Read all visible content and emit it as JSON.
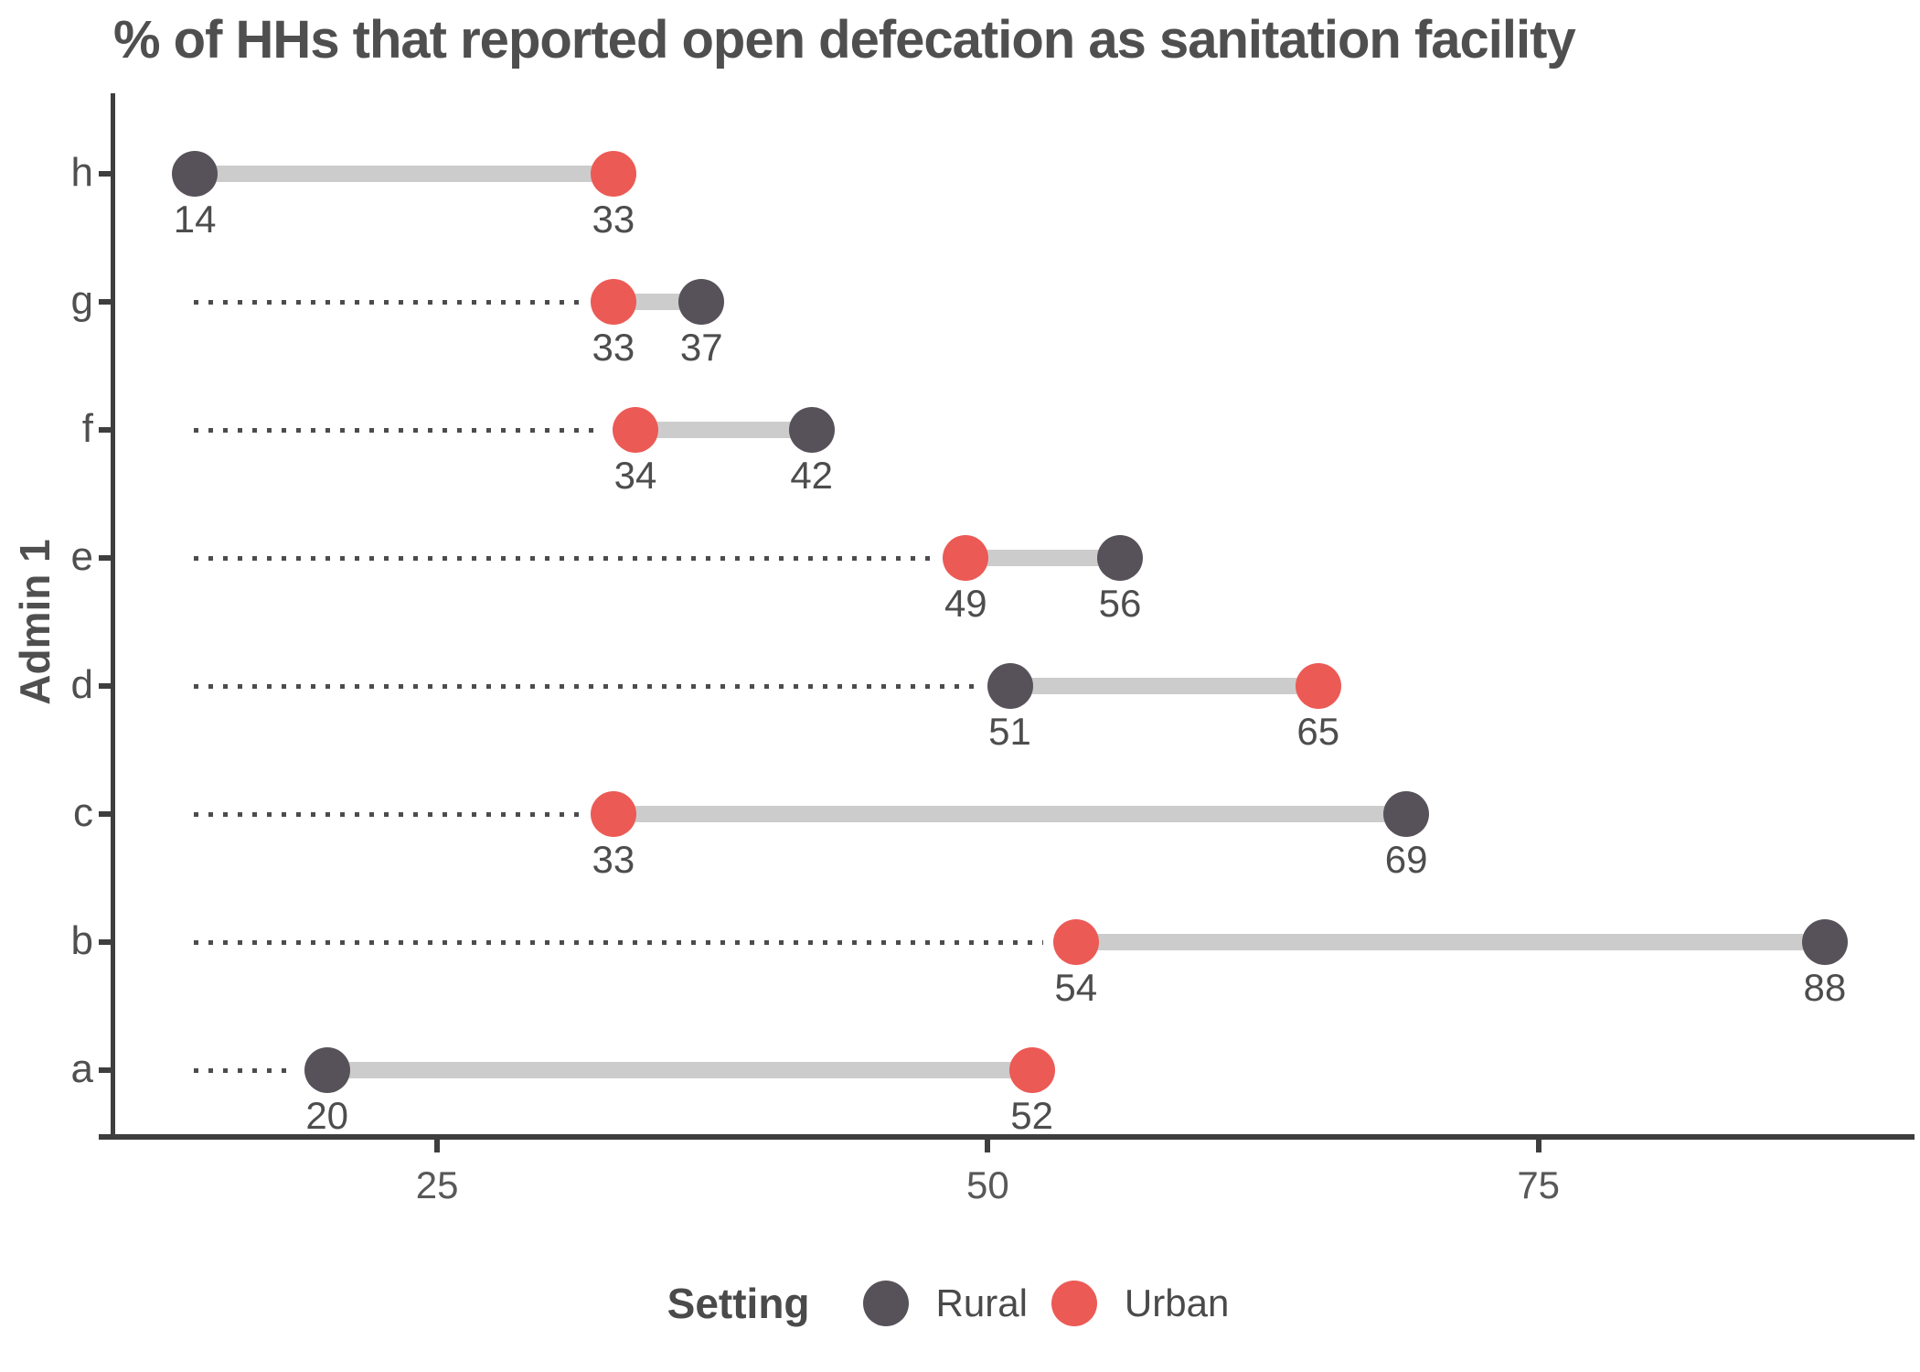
{
  "title": "% of HHs that reported open defecation as sanitation facility",
  "chart_data": {
    "type": "dumbbell",
    "title": "% of HHs that reported open defecation as sanitation facility",
    "xlabel": "",
    "ylabel": "Admin 1",
    "categories": [
      "h",
      "g",
      "f",
      "e",
      "d",
      "c",
      "b",
      "a"
    ],
    "series": [
      {
        "name": "Rural",
        "color": "#57525A",
        "values": [
          14,
          37,
          42,
          56,
          51,
          69,
          88,
          20
        ]
      },
      {
        "name": "Urban",
        "color": "#EC5A55",
        "values": [
          33,
          33,
          34,
          49,
          65,
          33,
          54,
          52
        ]
      }
    ],
    "x_ticks": [
      25,
      50,
      75
    ],
    "xlim": [
      10.3,
      91.7
    ],
    "grid": false,
    "legend_title": "Setting",
    "legend_position": "bottom",
    "connector_color": "#CCCCCC",
    "leader_line_color": "#4C4C4C",
    "axis_color": "#3E3E3E"
  }
}
